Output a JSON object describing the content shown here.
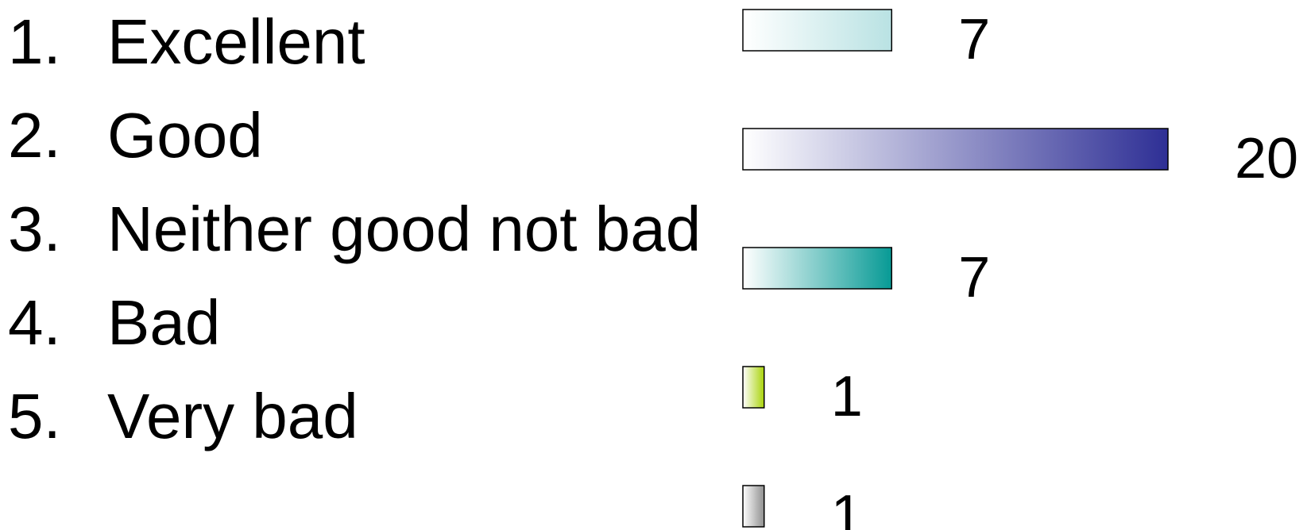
{
  "chart_data": {
    "type": "bar",
    "orientation": "horizontal",
    "categories": [
      "Excellent",
      "Good",
      "Neither good not bad",
      "Bad",
      "Very bad"
    ],
    "numbers": [
      "1.",
      "2.",
      "3.",
      "4.",
      "5."
    ],
    "values": [
      7,
      20,
      7,
      1,
      1
    ],
    "colors": [
      "#b9e2e3",
      "#2e2f95",
      "#079a95",
      "#a9d30a",
      "#909090"
    ],
    "xlim": [
      0,
      20
    ],
    "grid": false,
    "legend": "none"
  }
}
